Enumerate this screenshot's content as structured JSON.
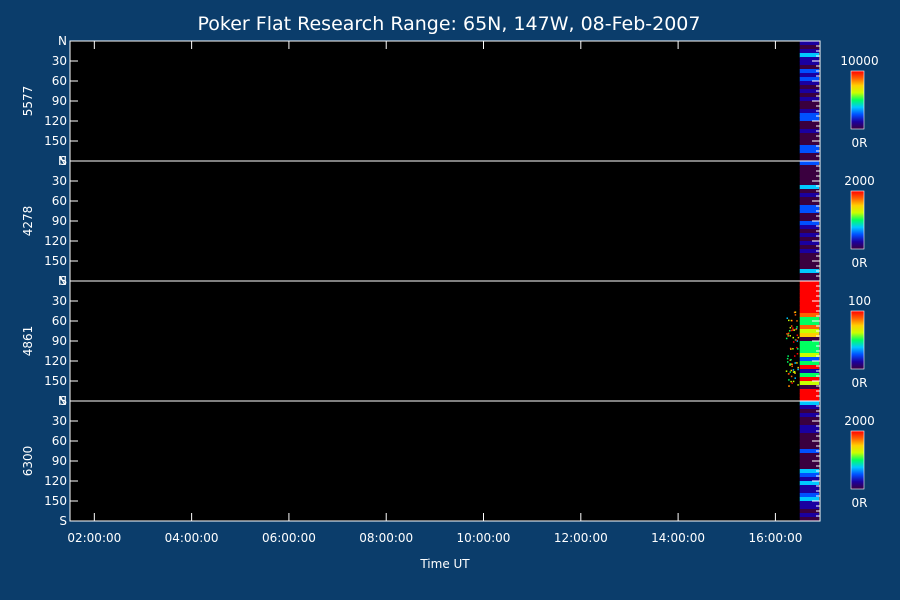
{
  "title": "Poker Flat Research Range: 65N, 147W, 08-Feb-2007",
  "chart_data": {
    "type": "heatmap",
    "title": "Poker Flat Research Range: 65N, 147W, 08-Feb-2007",
    "xlabel": "Time UT",
    "x_ticks": [
      "02:00:00",
      "04:00:00",
      "06:00:00",
      "08:00:00",
      "10:00:00",
      "12:00:00",
      "14:00:00",
      "16:00:00"
    ],
    "x_range": [
      "01:30:00",
      "16:55:00"
    ],
    "data_start": "16:30:00",
    "y_tick_labels": [
      "N",
      "30",
      "60",
      "90",
      "120",
      "150",
      "S"
    ],
    "background": "#000000",
    "panels": [
      {
        "ylabel": "5577",
        "cbar_max": "10000",
        "cbar_min": "0R",
        "activity": "low"
      },
      {
        "ylabel": "4278",
        "cbar_max": "2000",
        "cbar_min": "0R",
        "activity": "low"
      },
      {
        "ylabel": "4861",
        "cbar_max": "100",
        "cbar_min": "0R",
        "activity": "high"
      },
      {
        "ylabel": "6300",
        "cbar_max": "2000",
        "cbar_min": "0R",
        "activity": "low"
      }
    ]
  },
  "colors": {
    "page_background": "#0b3d6b",
    "plot_background": "#000000",
    "colormap": [
      "#3a003f",
      "#1a00a0",
      "#0050ff",
      "#00c8ff",
      "#00ff60",
      "#c8ff00",
      "#ffd000",
      "#ff6000",
      "#ff0000"
    ]
  }
}
